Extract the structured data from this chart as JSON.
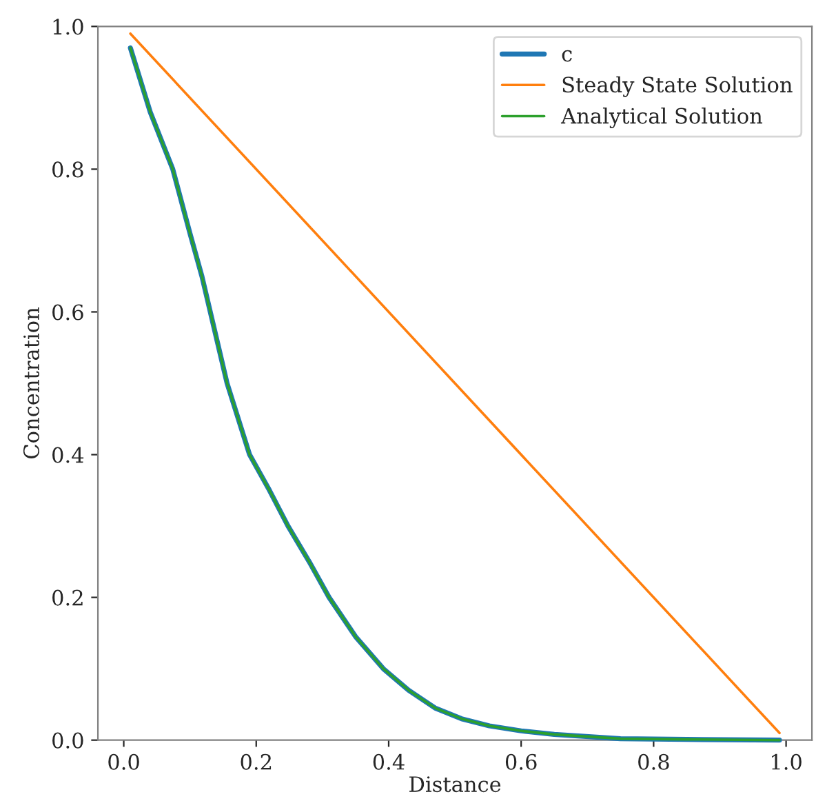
{
  "chart_data": {
    "type": "line",
    "xlabel": "Distance",
    "ylabel": "Concentration",
    "xlim": [
      -0.039,
      1.039
    ],
    "ylim": [
      0,
      1.0
    ],
    "xticks": [
      {
        "value": 0,
        "label": "0.0"
      },
      0.2,
      0.4,
      0.6,
      0.8,
      {
        "value": 1,
        "label": "1.0"
      }
    ],
    "yticks": [
      {
        "value": 0,
        "label": "0.0"
      },
      0.2,
      0.4,
      0.6,
      0.8,
      {
        "value": 1,
        "label": "1.0"
      }
    ],
    "grid": false,
    "legend": "top right",
    "marker": "none",
    "line_style": "solid",
    "series": [
      {
        "name": "c",
        "color": "#1f77b4",
        "x": [
          0.01,
          0.04,
          0.074,
          0.1,
          0.118,
          0.156,
          0.19,
          0.22,
          0.248,
          0.28,
          0.31,
          0.35,
          0.392,
          0.43,
          0.47,
          0.51,
          0.552,
          0.6,
          0.65,
          0.75,
          0.85,
          0.99
        ],
        "values": [
          0.97,
          0.88,
          0.8,
          0.71,
          0.65,
          0.5,
          0.4,
          0.35,
          0.3,
          0.25,
          0.2,
          0.145,
          0.1,
          0.07,
          0.045,
          0.03,
          0.02,
          0.013,
          0.008,
          0.002,
          0.001,
          0
        ]
      },
      {
        "name": "Steady State Solution",
        "color": "#ff7f0e",
        "x": [
          0.01,
          0.99
        ],
        "values": [
          0.99,
          0.01
        ]
      },
      {
        "name": "Analytical Solution",
        "color": "#2ca02c",
        "x": [
          0.01,
          0.04,
          0.074,
          0.1,
          0.118,
          0.156,
          0.19,
          0.22,
          0.248,
          0.28,
          0.31,
          0.35,
          0.392,
          0.43,
          0.47,
          0.51,
          0.552,
          0.6,
          0.65,
          0.75,
          0.85,
          0.99
        ],
        "values": [
          0.97,
          0.88,
          0.8,
          0.71,
          0.65,
          0.5,
          0.4,
          0.35,
          0.3,
          0.25,
          0.2,
          0.145,
          0.1,
          0.07,
          0.045,
          0.03,
          0.02,
          0.013,
          0.008,
          0.002,
          0.001,
          0
        ]
      }
    ]
  }
}
